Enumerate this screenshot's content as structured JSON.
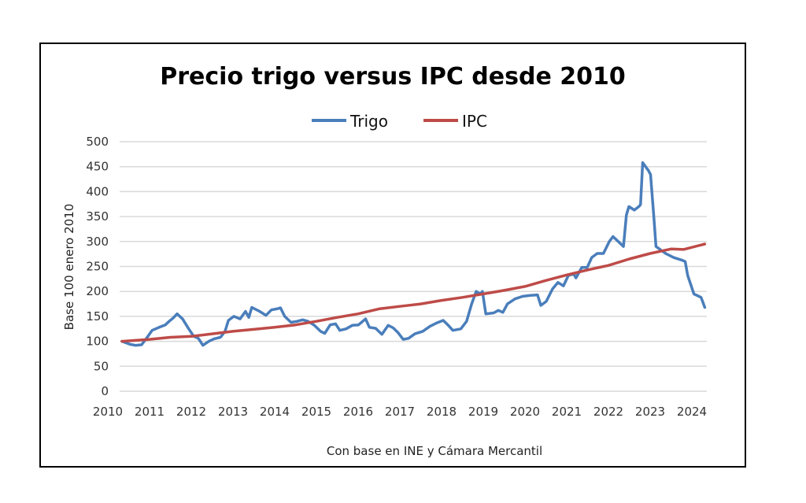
{
  "chart_data": {
    "type": "line",
    "title": "Precio trigo versus IPC desde 2010",
    "xlabel": "Con base en INE y Cámara Mercantil",
    "ylabel": "Base 100 enero 2010",
    "ylim": [
      0,
      500
    ],
    "xlim": [
      2010,
      2024.4
    ],
    "yticks": [
      "0",
      "50",
      "100",
      "150",
      "200",
      "250",
      "300",
      "350",
      "400",
      "450",
      "500"
    ],
    "xticks": [
      "2010",
      "2011",
      "2012",
      "2013",
      "2014",
      "2015",
      "2016",
      "2017",
      "2018",
      "2019",
      "2020",
      "2021",
      "2022",
      "2023",
      "2024"
    ],
    "grid": true,
    "legend_position": "top-center",
    "series": [
      {
        "name": "Trigo",
        "color": "#4a7ebb",
        "points": [
          [
            2010.34,
            100
          ],
          [
            2010.53,
            94
          ],
          [
            2010.66,
            92
          ],
          [
            2010.81,
            93
          ],
          [
            2010.96,
            110
          ],
          [
            2011.06,
            122
          ],
          [
            2011.23,
            128
          ],
          [
            2011.38,
            133
          ],
          [
            2011.47,
            140
          ],
          [
            2011.57,
            147
          ],
          [
            2011.66,
            155
          ],
          [
            2011.79,
            145
          ],
          [
            2011.94,
            125
          ],
          [
            2012.06,
            110
          ],
          [
            2012.17,
            106
          ],
          [
            2012.28,
            92
          ],
          [
            2012.42,
            100
          ],
          [
            2012.55,
            105
          ],
          [
            2012.7,
            108
          ],
          [
            2012.81,
            120
          ],
          [
            2012.89,
            142
          ],
          [
            2013.02,
            150
          ],
          [
            2013.17,
            145
          ],
          [
            2013.3,
            160
          ],
          [
            2013.38,
            148
          ],
          [
            2013.45,
            168
          ],
          [
            2013.64,
            160
          ],
          [
            2013.79,
            152
          ],
          [
            2013.92,
            163
          ],
          [
            2014.05,
            165
          ],
          [
            2014.14,
            167
          ],
          [
            2014.24,
            150
          ],
          [
            2014.39,
            138
          ],
          [
            2014.54,
            140
          ],
          [
            2014.67,
            143
          ],
          [
            2014.8,
            140
          ],
          [
            2014.95,
            132
          ],
          [
            2015.1,
            120
          ],
          [
            2015.2,
            116
          ],
          [
            2015.33,
            133
          ],
          [
            2015.46,
            135
          ],
          [
            2015.56,
            122
          ],
          [
            2015.71,
            125
          ],
          [
            2015.86,
            132
          ],
          [
            2016.01,
            133
          ],
          [
            2016.18,
            145
          ],
          [
            2016.27,
            128
          ],
          [
            2016.42,
            126
          ],
          [
            2016.57,
            114
          ],
          [
            2016.72,
            132
          ],
          [
            2016.84,
            127
          ],
          [
            2016.95,
            118
          ],
          [
            2017.08,
            104
          ],
          [
            2017.21,
            106
          ],
          [
            2017.36,
            115
          ],
          [
            2017.55,
            120
          ],
          [
            2017.72,
            130
          ],
          [
            2017.89,
            137
          ],
          [
            2018.04,
            142
          ],
          [
            2018.15,
            133
          ],
          [
            2018.27,
            122
          ],
          [
            2018.46,
            125
          ],
          [
            2018.6,
            140
          ],
          [
            2018.72,
            175
          ],
          [
            2018.83,
            200
          ],
          [
            2018.93,
            195
          ],
          [
            2018.98,
            200
          ],
          [
            2019.06,
            155
          ],
          [
            2019.25,
            157
          ],
          [
            2019.36,
            162
          ],
          [
            2019.47,
            158
          ],
          [
            2019.58,
            175
          ],
          [
            2019.76,
            185
          ],
          [
            2019.94,
            190
          ],
          [
            2020.13,
            192
          ],
          [
            2020.3,
            193
          ],
          [
            2020.38,
            172
          ],
          [
            2020.51,
            180
          ],
          [
            2020.66,
            205
          ],
          [
            2020.79,
            218
          ],
          [
            2020.92,
            211
          ],
          [
            2021.04,
            232
          ],
          [
            2021.17,
            235
          ],
          [
            2021.22,
            227
          ],
          [
            2021.36,
            248
          ],
          [
            2021.49,
            248
          ],
          [
            2021.6,
            268
          ],
          [
            2021.73,
            276
          ],
          [
            2021.88,
            276
          ],
          [
            2022.02,
            300
          ],
          [
            2022.11,
            310
          ],
          [
            2022.36,
            290
          ],
          [
            2022.43,
            353
          ],
          [
            2022.49,
            370
          ],
          [
            2022.62,
            363
          ],
          [
            2022.73,
            370
          ],
          [
            2022.77,
            374
          ],
          [
            2022.82,
            458
          ],
          [
            2022.96,
            442
          ],
          [
            2023.01,
            434
          ],
          [
            2023.09,
            347
          ],
          [
            2023.14,
            290
          ],
          [
            2023.37,
            276
          ],
          [
            2023.56,
            268
          ],
          [
            2023.75,
            263
          ],
          [
            2023.84,
            260
          ],
          [
            2023.9,
            232
          ],
          [
            2024.05,
            195
          ],
          [
            2024.22,
            188
          ],
          [
            2024.31,
            168
          ]
        ]
      },
      {
        "name": "IPC",
        "color": "#be4b48",
        "points": [
          [
            2010.34,
            100
          ],
          [
            2011,
            104
          ],
          [
            2011.5,
            108
          ],
          [
            2012,
            110
          ],
          [
            2012.5,
            115
          ],
          [
            2013,
            120
          ],
          [
            2013.5,
            124
          ],
          [
            2014,
            128
          ],
          [
            2014.5,
            133
          ],
          [
            2015,
            140
          ],
          [
            2015.5,
            148
          ],
          [
            2016,
            155
          ],
          [
            2016.5,
            165
          ],
          [
            2017,
            170
          ],
          [
            2017.5,
            175
          ],
          [
            2018,
            182
          ],
          [
            2018.5,
            188
          ],
          [
            2019,
            195
          ],
          [
            2019.5,
            202
          ],
          [
            2020,
            210
          ],
          [
            2020.5,
            222
          ],
          [
            2021,
            233
          ],
          [
            2021.5,
            243
          ],
          [
            2022,
            252
          ],
          [
            2022.5,
            265
          ],
          [
            2023,
            276
          ],
          [
            2023.5,
            285
          ],
          [
            2023.8,
            284
          ],
          [
            2024.31,
            295
          ]
        ]
      }
    ]
  }
}
